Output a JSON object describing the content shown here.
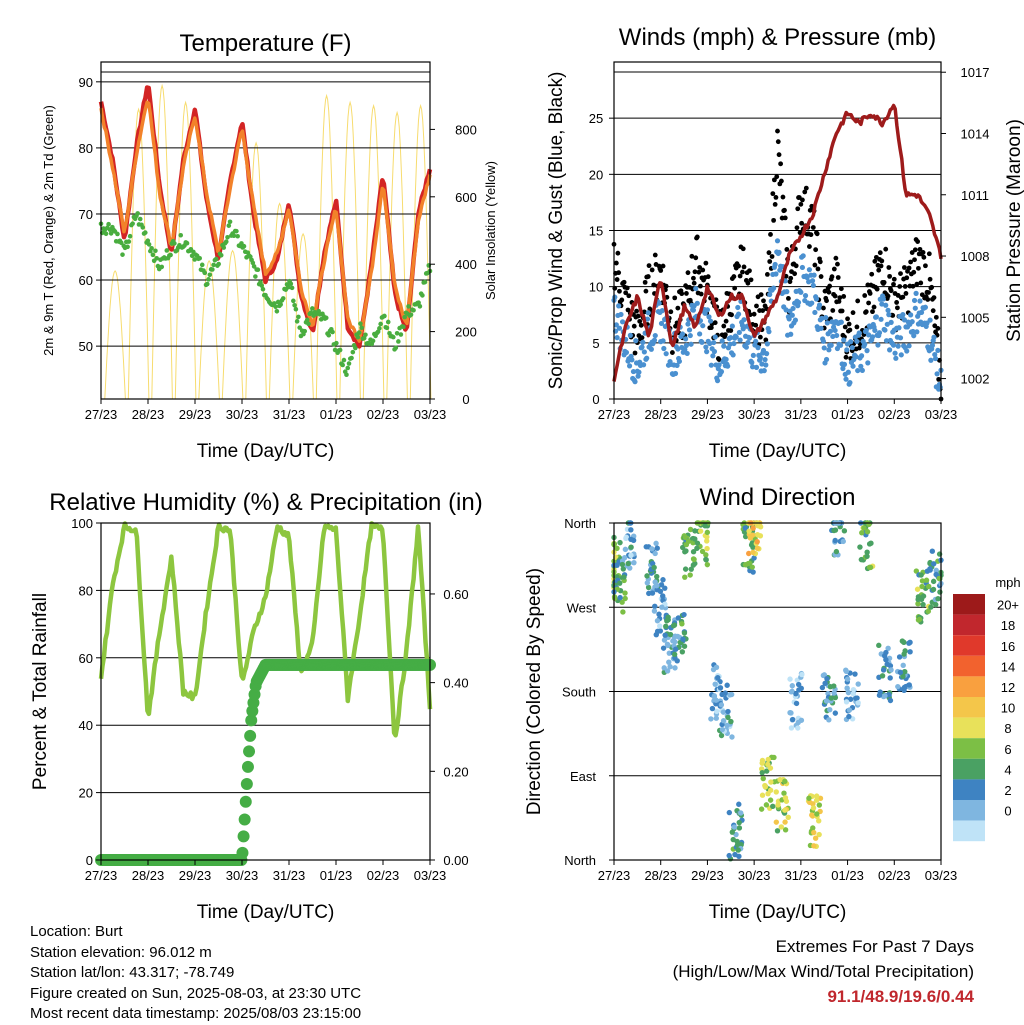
{
  "x_ticks": [
    "27/23",
    "28/23",
    "29/23",
    "30/23",
    "31/23",
    "01/23",
    "02/23",
    "03/23"
  ],
  "chart_data": [
    {
      "id": "temperature",
      "type": "line",
      "title": "Temperature (F)",
      "xlabel": "Time (Day/UTC)",
      "ylabel": "2m & 9m T (Red, Orange) & 2m Td (Green)",
      "ylabel_right": "Solar Insolation (Yellow)",
      "ylim": [
        42,
        93
      ],
      "yticks": [
        50,
        60,
        70,
        80,
        90
      ],
      "ylim_right": [
        0,
        1000
      ],
      "yticks_right": [
        0,
        200,
        400,
        600,
        800
      ],
      "x_days": [
        0,
        0.25,
        0.5,
        0.75,
        1,
        1.25,
        1.5,
        1.75,
        2,
        2.25,
        2.5,
        2.75,
        3,
        3.25,
        3.5,
        3.75,
        4,
        4.25,
        4.5,
        4.75,
        5,
        5.25,
        5.5,
        5.75,
        6,
        6.25,
        6.5,
        6.75,
        7
      ],
      "series": [
        {
          "name": "2m T",
          "color": "#d32424",
          "values": [
            87,
            78,
            66,
            80,
            90,
            74,
            64,
            78,
            86,
            72,
            63,
            75,
            84,
            70,
            60,
            63,
            72,
            58,
            52,
            64,
            72,
            53,
            50,
            62,
            76,
            58,
            52,
            70,
            77
          ]
        },
        {
          "name": "9m T",
          "color": "#f2822a",
          "values": [
            86,
            77,
            67,
            79,
            88,
            73,
            65,
            77,
            85,
            73,
            64,
            74,
            83,
            71,
            61,
            64,
            71,
            59,
            53,
            63,
            71,
            54,
            51,
            61,
            75,
            59,
            53,
            69,
            76
          ]
        },
        {
          "name": "2m Td",
          "color": "#49ad3f",
          "values": [
            68,
            68,
            64,
            70,
            66,
            62,
            65,
            66,
            64,
            60,
            63,
            68,
            65,
            62,
            58,
            56,
            60,
            52,
            55,
            54,
            50,
            46,
            53,
            50,
            55,
            50,
            55,
            56,
            62
          ]
        }
      ],
      "insolation": {
        "color": "#f7dc6f",
        "peaks": [
          380,
          860,
          930,
          880,
          410,
          440,
          760,
          580,
          490,
          900,
          880,
          870,
          850,
          870
        ]
      }
    },
    {
      "id": "winds",
      "type": "scatter",
      "title": "Winds (mph) & Pressure (mb)",
      "xlabel": "Time (Day/UTC)",
      "ylabel": "Sonic/Prop Wind & Gust (Blue, Black)",
      "ylabel_right": "Station Pressure (Maroon)",
      "ylim": [
        0,
        30
      ],
      "yticks": [
        0,
        5,
        10,
        15,
        20,
        25
      ],
      "ylim_right": [
        1001,
        1017.5
      ],
      "yticks_right": [
        1002,
        1005,
        1008,
        1011,
        1014,
        1017
      ],
      "x_days": [
        0,
        0.25,
        0.5,
        0.75,
        1,
        1.25,
        1.5,
        1.75,
        2,
        2.25,
        2.5,
        2.75,
        3,
        3.25,
        3.5,
        3.75,
        4,
        4.25,
        4.5,
        4.75,
        5,
        5.25,
        5.5,
        5.75,
        6,
        6.25,
        6.5,
        6.75,
        7
      ],
      "series": [
        {
          "name": "Gust",
          "color": "#000000",
          "values": [
            12,
            8,
            5,
            9,
            11,
            6,
            7,
            12,
            9,
            5,
            8,
            11,
            7,
            6,
            22,
            9,
            17,
            15,
            7,
            10,
            5,
            6,
            8,
            12,
            8,
            9,
            12,
            10,
            1
          ]
        },
        {
          "name": "Wind",
          "color": "#4a90d0",
          "values": [
            8,
            5,
            3,
            6,
            7,
            4,
            5,
            8,
            6,
            3,
            5,
            7,
            4,
            4,
            14,
            6,
            11,
            10,
            5,
            7,
            3,
            4,
            5,
            8,
            5,
            6,
            8,
            6,
            1
          ]
        },
        {
          "name": "Pressure",
          "color": "#9e1b1b",
          "values": [
            1002,
            1004.5,
            1006,
            1004,
            1007,
            1003.5,
            1005.5,
            1004.5,
            1006.5,
            1005,
            1006,
            1006,
            1004,
            1005,
            1006,
            1008,
            1009,
            1010,
            1012,
            1014,
            1015,
            1014.5,
            1015,
            1014.5,
            1015.5,
            1011,
            1011,
            1010,
            1008
          ]
        }
      ]
    },
    {
      "id": "humidity",
      "type": "line",
      "title": "Relative Humidity (%) & Precipitation (in)",
      "xlabel": "Time (Day/UTC)",
      "ylabel": "Percent & Total Rainfall",
      "ylim": [
        0,
        100
      ],
      "yticks": [
        0,
        20,
        40,
        60,
        80,
        100
      ],
      "ylim_right": [
        0,
        0.76
      ],
      "yticks_right": [
        "0.00",
        "0.20",
        "0.40",
        "0.60"
      ],
      "x_days": [
        0,
        0.25,
        0.5,
        0.75,
        1,
        1.25,
        1.5,
        1.75,
        2,
        2.25,
        2.5,
        2.75,
        3,
        3.25,
        3.5,
        3.75,
        4,
        4.25,
        4.5,
        4.75,
        5,
        5.25,
        5.5,
        5.75,
        6,
        6.25,
        6.5,
        6.75,
        7
      ],
      "series": [
        {
          "name": "RH",
          "color": "#8dc63f",
          "values": [
            54,
            82,
            99,
            98,
            42,
            68,
            90,
            50,
            48,
            75,
            99,
            98,
            52,
            68,
            78,
            99,
            96,
            55,
            64,
            99,
            98,
            48,
            72,
            99,
            98,
            35,
            62,
            99,
            45
          ]
        },
        {
          "name": "Precip",
          "color": "#45ad45",
          "x": [
            0,
            1,
            2,
            3,
            3.05,
            3.12,
            3.2,
            3.3,
            3.5,
            4,
            5,
            6,
            7
          ],
          "values": [
            0,
            0,
            0,
            0,
            0.08,
            0.2,
            0.32,
            0.4,
            0.44,
            0.44,
            0.44,
            0.44,
            0.44
          ]
        }
      ]
    },
    {
      "id": "direction",
      "type": "scatter",
      "title": "Wind Direction",
      "xlabel": "Time (Day/UTC)",
      "ylabel": "Direction (Colored By Speed)",
      "ylim": [
        0,
        360
      ],
      "ytick_labels": [
        "North",
        "East",
        "South",
        "West",
        "North"
      ],
      "legend": {
        "title": "mph",
        "placement": "right",
        "labels": [
          "20+",
          "18",
          "16",
          "14",
          "12",
          "10",
          "8",
          "6",
          "4",
          "2",
          "0"
        ],
        "colors": [
          "#9d1a1a",
          "#c1272d",
          "#e0392b",
          "#f2622e",
          "#f9a03f",
          "#f4c64a",
          "#e8e15a",
          "#7cbf45",
          "#4aa163",
          "#3e83c2",
          "#7fb6e0",
          "#bfe3f7"
        ]
      },
      "clusters": [
        {
          "x": 0.0,
          "dir": 320,
          "spd": 8
        },
        {
          "x": 0.1,
          "dir": 290,
          "spd": 6
        },
        {
          "x": 0.3,
          "dir": 340,
          "spd": 3
        },
        {
          "x": 0.8,
          "dir": 310,
          "spd": 4
        },
        {
          "x": 1.0,
          "dir": 270,
          "spd": 3
        },
        {
          "x": 1.2,
          "dir": 230,
          "spd": 4
        },
        {
          "x": 1.4,
          "dir": 240,
          "spd": 5
        },
        {
          "x": 1.6,
          "dir": 330,
          "spd": 7
        },
        {
          "x": 1.9,
          "dir": 345,
          "spd": 8
        },
        {
          "x": 2.2,
          "dir": 180,
          "spd": 2
        },
        {
          "x": 2.4,
          "dir": 160,
          "spd": 3
        },
        {
          "x": 2.6,
          "dir": 30,
          "spd": 5
        },
        {
          "x": 2.9,
          "dir": 335,
          "spd": 6
        },
        {
          "x": 3.0,
          "dir": 355,
          "spd": 12
        },
        {
          "x": 3.3,
          "dir": 80,
          "spd": 8
        },
        {
          "x": 3.6,
          "dir": 60,
          "spd": 9
        },
        {
          "x": 3.9,
          "dir": 170,
          "spd": 2
        },
        {
          "x": 4.3,
          "dir": 40,
          "spd": 10
        },
        {
          "x": 4.6,
          "dir": 170,
          "spd": 4
        },
        {
          "x": 4.8,
          "dir": 355,
          "spd": 4
        },
        {
          "x": 5.1,
          "dir": 180,
          "spd": 3
        },
        {
          "x": 5.4,
          "dir": 340,
          "spd": 7
        },
        {
          "x": 5.8,
          "dir": 200,
          "spd": 4
        },
        {
          "x": 6.2,
          "dir": 210,
          "spd": 4
        },
        {
          "x": 6.6,
          "dir": 280,
          "spd": 7
        },
        {
          "x": 6.9,
          "dir": 300,
          "spd": 5
        }
      ]
    }
  ],
  "info": {
    "location": "Location: Burt",
    "elevation": "Station elevation: 96.012 m",
    "latlon": "Station lat/lon: 43.317; -78.749",
    "created": "Figure created on Sun, 2025-08-03, at 23:30 UTC",
    "recent": "Most recent data timestamp: 2025/08/03 23:15:00"
  },
  "extremes": {
    "line1": "Extremes For Past 7 Days",
    "line2": "(High/Low/Max Wind/Total Precipitation)",
    "values": "91.1/48.9/19.6/0.44"
  }
}
